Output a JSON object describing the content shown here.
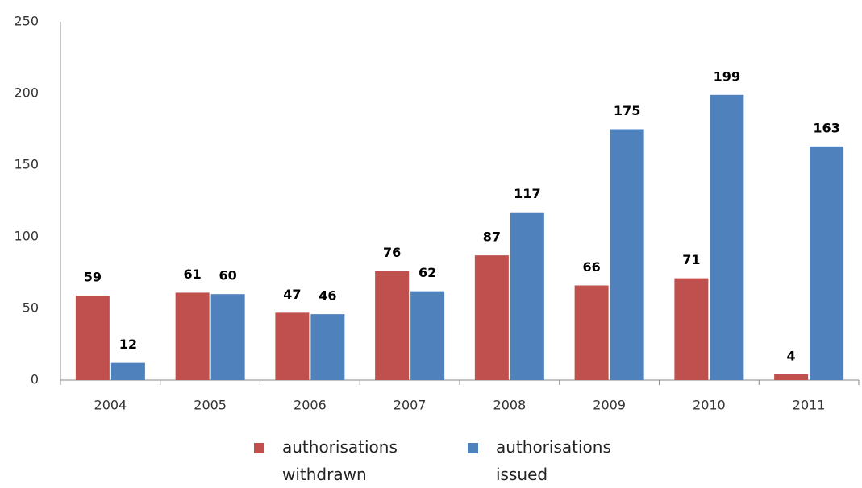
{
  "chart_data": {
    "type": "bar",
    "categories": [
      "2004",
      "2005",
      "2006",
      "2007",
      "2008",
      "2009",
      "2010",
      "2011"
    ],
    "series": [
      {
        "name": "authorisations withdrawn",
        "color": "#c0504d",
        "values": [
          59,
          61,
          47,
          76,
          87,
          66,
          71,
          4
        ]
      },
      {
        "name": "authorisations issued",
        "color": "#4f81bd",
        "values": [
          12,
          60,
          46,
          62,
          117,
          175,
          199,
          163
        ]
      }
    ],
    "ylim": [
      0,
      250
    ],
    "yticks": [
      0,
      50,
      100,
      150,
      200,
      250
    ],
    "grid": false,
    "legend": "bottom"
  }
}
